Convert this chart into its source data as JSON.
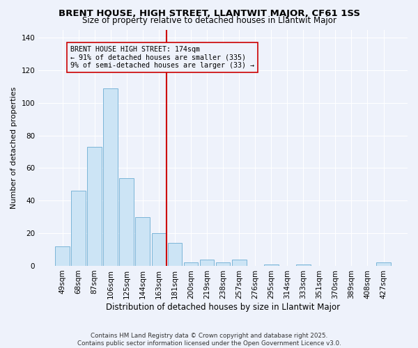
{
  "title": "BRENT HOUSE, HIGH STREET, LLANTWIT MAJOR, CF61 1SS",
  "subtitle": "Size of property relative to detached houses in Llantwit Major",
  "xlabel": "Distribution of detached houses by size in Llantwit Major",
  "ylabel": "Number of detached properties",
  "bar_labels": [
    "49sqm",
    "68sqm",
    "87sqm",
    "106sqm",
    "125sqm",
    "144sqm",
    "163sqm",
    "181sqm",
    "200sqm",
    "219sqm",
    "238sqm",
    "257sqm",
    "276sqm",
    "295sqm",
    "314sqm",
    "333sqm",
    "351sqm",
    "370sqm",
    "389sqm",
    "408sqm",
    "427sqm"
  ],
  "bar_values": [
    12,
    46,
    73,
    109,
    54,
    30,
    20,
    14,
    2,
    4,
    2,
    4,
    0,
    1,
    0,
    1,
    0,
    0,
    0,
    0,
    2
  ],
  "bar_color": "#cce4f5",
  "bar_edge_color": "#7ab5d8",
  "vline_color": "#cc0000",
  "annotation_title": "BRENT HOUSE HIGH STREET: 174sqm",
  "annotation_line1": "← 91% of detached houses are smaller (335)",
  "annotation_line2": "9% of semi-detached houses are larger (33) →",
  "ylim": [
    0,
    145
  ],
  "yticks": [
    0,
    20,
    40,
    60,
    80,
    100,
    120,
    140
  ],
  "footnote1": "Contains HM Land Registry data © Crown copyright and database right 2025.",
  "footnote2": "Contains public sector information licensed under the Open Government Licence v3.0.",
  "background_color": "#eef2fb",
  "grid_color": "#ffffff",
  "title_fontsize": 9.5,
  "subtitle_fontsize": 8.5
}
